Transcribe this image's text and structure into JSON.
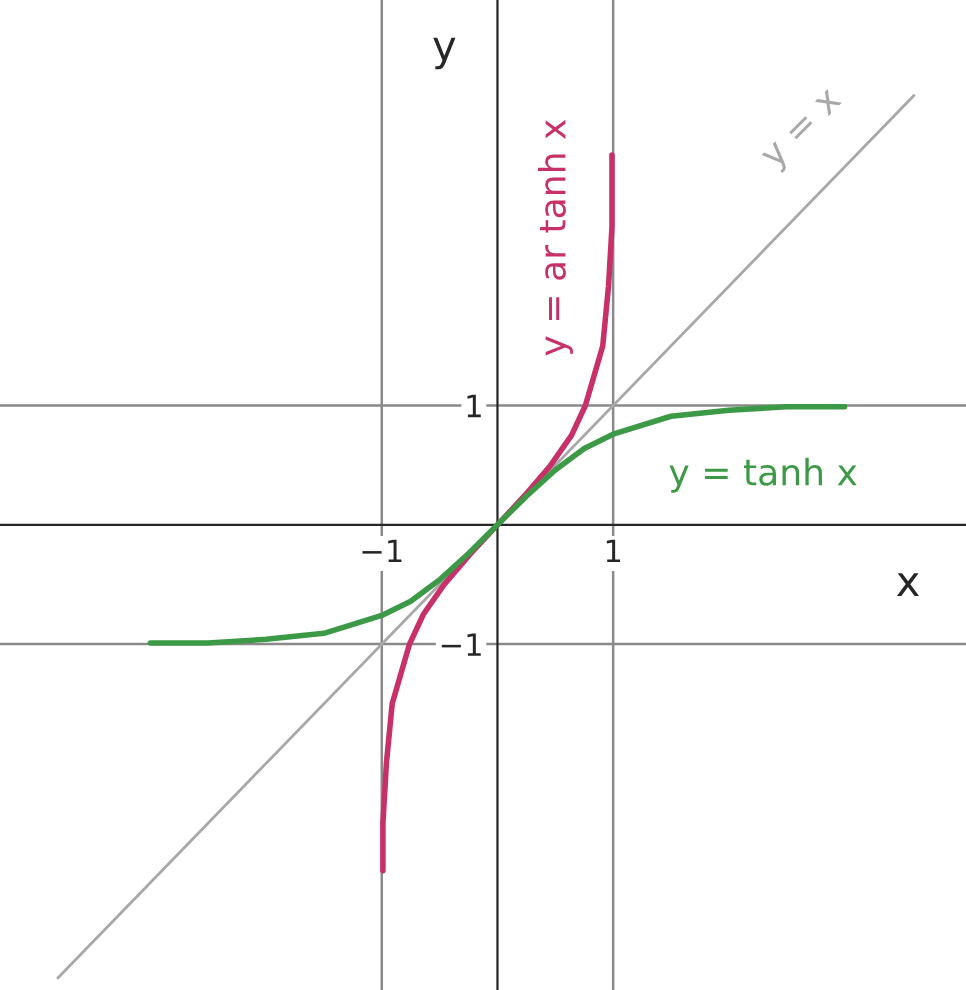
{
  "chart_data": {
    "type": "line",
    "xlabel": "x",
    "ylabel": "y",
    "xlim": [
      -4.3,
      4.05
    ],
    "ylim": [
      -3.9,
      4.4
    ],
    "xticks": [
      -1,
      1
    ],
    "yticks": [
      1,
      -1
    ],
    "grid": true,
    "legend": false,
    "series": [
      {
        "color": "#3c9a46",
        "x": [
          -3,
          -2.5,
          -2,
          -1.5,
          -1,
          -0.75,
          -0.5,
          -0.25,
          0,
          0.25,
          0.5,
          0.75,
          1,
          1.5,
          2,
          2.5,
          3
        ],
        "values": [
          -0.99,
          -0.99,
          -0.96,
          -0.91,
          -0.76,
          -0.64,
          -0.46,
          -0.24,
          0,
          0.24,
          0.46,
          0.64,
          0.76,
          0.91,
          0.96,
          0.99,
          0.99
        ]
      },
      {
        "color": "#c8306a",
        "x": [
          -0.99,
          -0.99,
          -0.96,
          -0.91,
          -0.76,
          -0.64,
          -0.46,
          -0.24,
          0,
          0.24,
          0.46,
          0.64,
          0.76,
          0.91,
          0.96,
          0.99,
          0.99
        ],
        "values": [
          -2.9,
          -2.5,
          -2,
          -1.5,
          -1,
          -0.75,
          -0.5,
          -0.25,
          0,
          0.25,
          0.5,
          0.75,
          1,
          1.5,
          2,
          2.5,
          3.1
        ]
      },
      {
        "color": "#a8a8a8",
        "x": [
          -3.8,
          3.6
        ],
        "values": [
          -3.8,
          3.6
        ]
      }
    ],
    "annotations": [
      "y = ar tanh x",
      "y = tanh x",
      "y = x"
    ]
  }
}
